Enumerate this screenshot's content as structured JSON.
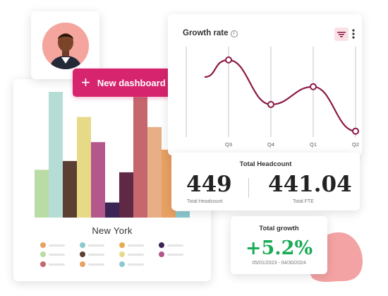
{
  "avatar_card": {
    "icon": "person-avatar"
  },
  "new_dashboard": {
    "label": "New dashboard",
    "icon": "plus-icon"
  },
  "bar_chart_card": {
    "title": "New York",
    "bars": [
      {
        "color": "#b9dca7",
        "value": 0.38
      },
      {
        "color": "#b6dcd6",
        "value": 1.0
      },
      {
        "color": "#5b3f33",
        "value": 0.45
      },
      {
        "color": "#e6da86",
        "value": 0.8
      },
      {
        "color": "#b3578c",
        "value": 0.6
      },
      {
        "color": "#3c2455",
        "value": 0.12
      },
      {
        "color": "#5f2844",
        "value": 0.36
      },
      {
        "color": "#c5676c",
        "value": 0.96
      },
      {
        "color": "#e8ae87",
        "value": 0.72
      },
      {
        "color": "#e8a163",
        "value": 0.54
      },
      {
        "color": "#8ac9cf",
        "value": 0.05
      }
    ],
    "legend": [
      {
        "color": "#e8a163"
      },
      {
        "color": "#8ac9cf"
      },
      {
        "color": "#e8aa4c"
      },
      {
        "color": "#3c2455"
      },
      {
        "color": "#b9dca7"
      },
      {
        "color": "#5b3f33"
      },
      {
        "color": "#e6da86"
      },
      {
        "color": "#b3578c"
      },
      {
        "color": "#c5676c"
      },
      {
        "color": "#e8a163"
      },
      {
        "color": "#8ac9cf"
      }
    ]
  },
  "growth_rate": {
    "title": "Growth rate",
    "info_icon": "info-icon",
    "filter_icon": "filter-icon",
    "menu_icon": "kebab-menu-icon",
    "accent": "#8b1a47",
    "chart_data": {
      "type": "line",
      "categories": [
        "Q3",
        "Q4",
        "Q1",
        "Q2"
      ],
      "series": [
        {
          "values": [
            0.85,
            0.35,
            0.55,
            0.05
          ]
        }
      ]
    }
  },
  "total_headcount": {
    "title": "Total Headcount",
    "headcount_value": "449",
    "headcount_label": "Total Headcount",
    "fte_value": "441.04",
    "fte_label": "Total FTE"
  },
  "total_growth": {
    "title": "Total growth",
    "value": "+5.2%",
    "date_range": "05/01/2023 - 04/30/2024",
    "value_color": "#1aab55"
  }
}
